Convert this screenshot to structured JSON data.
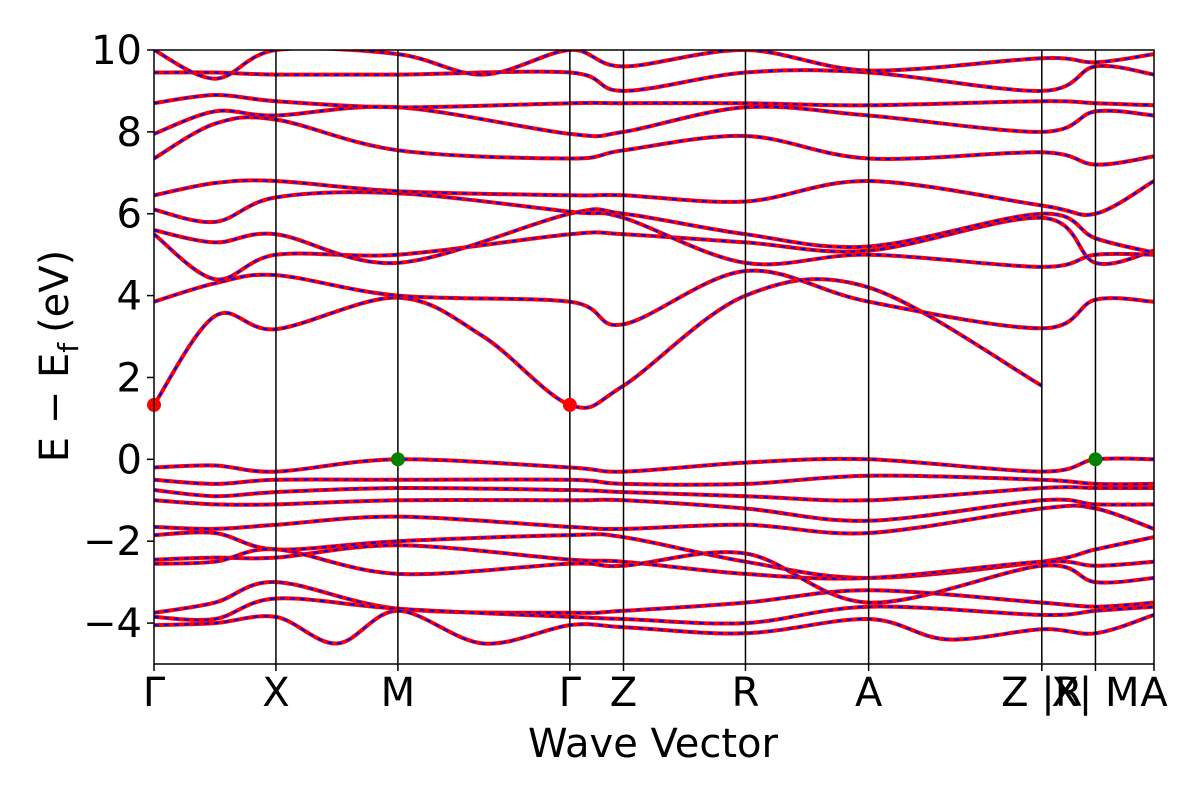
{
  "chart_data": {
    "type": "line",
    "title": "",
    "xlabel": "Wave Vector",
    "ylabel": "E − E",
    "ylabel_sub": "f",
    "ylabel_unit": "(eV)",
    "ylim": [
      -5,
      10
    ],
    "yticks": [
      -4,
      -2,
      0,
      2,
      4,
      6,
      8,
      10
    ],
    "ytick_labels": [
      "−4",
      "−2",
      "0",
      "2",
      "4",
      "6",
      "8",
      "10"
    ],
    "kpath_length": 8.2,
    "high_symmetry_points": [
      {
        "label": "Γ",
        "k": 0.0
      },
      {
        "label": "X",
        "k": 1.0
      },
      {
        "label": "M",
        "k": 2.0
      },
      {
        "label": "Γ",
        "k": 3.41
      },
      {
        "label": "Z",
        "k": 3.85
      },
      {
        "label": "R",
        "k": 4.85
      },
      {
        "label": "A",
        "k": 5.86
      },
      {
        "label": "Z |R",
        "k": 7.28
      },
      {
        "label": "X| M",
        "k": 7.72
      },
      {
        "label": "A",
        "k": 8.2
      }
    ],
    "colors": {
      "band_solid": "#ff0000",
      "band_dashed": "#0000ff",
      "vbm_marker": "#008000",
      "cbm_marker": "#ff0000"
    },
    "markers": [
      {
        "kind": "CBM",
        "k": 0.0,
        "energy": 1.33
      },
      {
        "kind": "CBM",
        "k": 3.41,
        "energy": 1.33
      },
      {
        "kind": "VBM",
        "k": 2.0,
        "energy": 0.0
      },
      {
        "kind": "VBM",
        "k": 7.72,
        "energy": 0.0
      }
    ],
    "series": [
      {
        "values": [
          [
            0,
            1.33
          ],
          [
            0.5,
            3.5
          ],
          [
            1,
            3.18
          ],
          [
            2,
            3.95
          ],
          [
            2.7,
            3.0
          ],
          [
            3.41,
            1.33
          ],
          [
            3.85,
            1.8
          ],
          [
            4.85,
            4.0
          ],
          [
            5.86,
            4.2
          ],
          [
            7.28,
            1.8
          ]
        ]
      },
      {
        "values": [
          [
            0,
            3.85
          ],
          [
            0.5,
            4.3
          ],
          [
            1,
            4.5
          ],
          [
            2,
            4.0
          ],
          [
            3.41,
            3.85
          ],
          [
            3.85,
            3.3
          ],
          [
            4.85,
            4.6
          ],
          [
            5.86,
            3.85
          ],
          [
            7.28,
            3.2
          ],
          [
            7.72,
            3.9
          ],
          [
            8.2,
            3.85
          ]
        ]
      },
      {
        "values": [
          [
            0,
            5.5
          ],
          [
            0.5,
            4.4
          ],
          [
            1,
            5.0
          ],
          [
            2,
            5.0
          ],
          [
            3.41,
            5.5
          ],
          [
            3.85,
            5.5
          ],
          [
            4.85,
            5.3
          ],
          [
            5.86,
            5.1
          ],
          [
            7.28,
            5.9
          ],
          [
            7.72,
            4.8
          ],
          [
            8.2,
            5.1
          ]
        ]
      },
      {
        "values": [
          [
            0,
            5.6
          ],
          [
            0.5,
            5.3
          ],
          [
            1,
            5.5
          ],
          [
            2,
            4.8
          ],
          [
            3.41,
            6.0
          ],
          [
            3.85,
            6.0
          ],
          [
            4.85,
            5.5
          ],
          [
            5.86,
            5.2
          ],
          [
            7.28,
            6.0
          ],
          [
            7.72,
            5.4
          ],
          [
            8.2,
            5.05
          ]
        ]
      },
      {
        "values": [
          [
            0,
            6.1
          ],
          [
            0.5,
            5.8
          ],
          [
            1,
            6.4
          ],
          [
            2,
            6.5
          ],
          [
            3.41,
            6.05
          ],
          [
            3.85,
            5.9
          ],
          [
            4.85,
            4.8
          ],
          [
            5.86,
            5.0
          ],
          [
            7.28,
            4.7
          ],
          [
            7.72,
            5.0
          ],
          [
            8.2,
            5.0
          ]
        ]
      },
      {
        "values": [
          [
            0,
            6.45
          ],
          [
            0.5,
            6.75
          ],
          [
            1,
            6.8
          ],
          [
            2,
            6.55
          ],
          [
            3.41,
            6.45
          ],
          [
            3.85,
            6.45
          ],
          [
            4.85,
            6.3
          ],
          [
            5.86,
            6.8
          ],
          [
            7.28,
            6.2
          ],
          [
            7.72,
            6.0
          ],
          [
            8.2,
            6.8
          ]
        ]
      },
      {
        "values": [
          [
            0,
            7.35
          ],
          [
            0.5,
            8.2
          ],
          [
            1,
            8.3
          ],
          [
            2,
            7.55
          ],
          [
            3.41,
            7.35
          ],
          [
            3.85,
            7.55
          ],
          [
            4.85,
            7.9
          ],
          [
            5.86,
            7.35
          ],
          [
            7.28,
            7.5
          ],
          [
            7.72,
            7.2
          ],
          [
            8.2,
            7.4
          ]
        ]
      },
      {
        "values": [
          [
            0,
            7.95
          ],
          [
            0.5,
            8.5
          ],
          [
            1,
            8.4
          ],
          [
            2,
            8.6
          ],
          [
            3.41,
            7.95
          ],
          [
            3.85,
            8.0
          ],
          [
            4.85,
            8.6
          ],
          [
            5.86,
            8.4
          ],
          [
            7.28,
            8.0
          ],
          [
            7.72,
            8.5
          ],
          [
            8.2,
            8.4
          ]
        ]
      },
      {
        "values": [
          [
            0,
            8.7
          ],
          [
            0.5,
            8.9
          ],
          [
            1,
            8.75
          ],
          [
            2,
            8.6
          ],
          [
            3.41,
            8.7
          ],
          [
            3.85,
            8.7
          ],
          [
            4.85,
            8.7
          ],
          [
            5.86,
            8.65
          ],
          [
            7.28,
            8.75
          ],
          [
            7.72,
            8.7
          ],
          [
            8.2,
            8.65
          ]
        ]
      },
      {
        "values": [
          [
            0,
            9.45
          ],
          [
            0.5,
            9.45
          ],
          [
            1,
            9.4
          ],
          [
            2,
            9.4
          ],
          [
            3.41,
            9.45
          ],
          [
            3.85,
            9.0
          ],
          [
            4.85,
            9.45
          ],
          [
            5.86,
            9.45
          ],
          [
            7.28,
            9.0
          ],
          [
            7.72,
            9.6
          ],
          [
            8.2,
            9.4
          ]
        ]
      },
      {
        "values": [
          [
            0,
            10.0
          ],
          [
            0.5,
            9.3
          ],
          [
            1,
            10.0
          ],
          [
            2,
            9.9
          ],
          [
            2.7,
            9.4
          ],
          [
            3.41,
            10.0
          ],
          [
            3.85,
            9.6
          ],
          [
            4.85,
            10.0
          ],
          [
            5.86,
            9.5
          ],
          [
            7.28,
            9.8
          ],
          [
            7.72,
            9.7
          ],
          [
            8.2,
            9.9
          ]
        ]
      },
      {
        "values": [
          [
            0,
            -0.2
          ],
          [
            0.5,
            -0.15
          ],
          [
            1,
            -0.3
          ],
          [
            2,
            0.0
          ],
          [
            3.41,
            -0.2
          ],
          [
            3.85,
            -0.3
          ],
          [
            4.85,
            -0.08
          ],
          [
            5.86,
            0.0
          ],
          [
            7.28,
            -0.3
          ],
          [
            7.72,
            0.0
          ],
          [
            8.2,
            0.0
          ]
        ]
      },
      {
        "values": [
          [
            0,
            -0.5
          ],
          [
            0.5,
            -0.6
          ],
          [
            1,
            -0.5
          ],
          [
            2,
            -0.5
          ],
          [
            3.41,
            -0.5
          ],
          [
            3.85,
            -0.6
          ],
          [
            4.85,
            -0.6
          ],
          [
            5.86,
            -0.4
          ],
          [
            7.28,
            -0.5
          ],
          [
            7.72,
            -0.6
          ],
          [
            8.2,
            -0.6
          ]
        ]
      },
      {
        "values": [
          [
            0,
            -0.75
          ],
          [
            0.5,
            -0.9
          ],
          [
            1,
            -0.8
          ],
          [
            2,
            -0.7
          ],
          [
            3.41,
            -0.75
          ],
          [
            3.85,
            -0.8
          ],
          [
            4.85,
            -0.9
          ],
          [
            5.86,
            -1.0
          ],
          [
            7.28,
            -0.7
          ],
          [
            7.72,
            -0.7
          ],
          [
            8.2,
            -0.7
          ]
        ]
      },
      {
        "values": [
          [
            0,
            -1.0
          ],
          [
            0.5,
            -1.1
          ],
          [
            1,
            -1.1
          ],
          [
            2,
            -1.0
          ],
          [
            3.41,
            -1.0
          ],
          [
            3.85,
            -1.0
          ],
          [
            4.85,
            -1.2
          ],
          [
            5.86,
            -1.5
          ],
          [
            7.28,
            -1.0
          ],
          [
            7.72,
            -1.1
          ],
          [
            8.2,
            -1.1
          ]
        ]
      },
      {
        "values": [
          [
            0,
            -1.65
          ],
          [
            0.5,
            -1.7
          ],
          [
            1,
            -1.6
          ],
          [
            2,
            -1.4
          ],
          [
            3.41,
            -1.65
          ],
          [
            3.85,
            -1.7
          ],
          [
            4.85,
            -1.6
          ],
          [
            5.86,
            -1.8
          ],
          [
            7.28,
            -1.2
          ],
          [
            7.72,
            -1.2
          ],
          [
            8.2,
            -1.7
          ]
        ]
      },
      {
        "values": [
          [
            0,
            -1.85
          ],
          [
            0.5,
            -1.8
          ],
          [
            1,
            -2.2
          ],
          [
            2,
            -2.0
          ],
          [
            3.41,
            -1.85
          ],
          [
            3.85,
            -1.9
          ],
          [
            4.85,
            -2.5
          ],
          [
            5.86,
            -2.9
          ],
          [
            7.28,
            -2.5
          ],
          [
            7.72,
            -2.2
          ],
          [
            8.2,
            -1.9
          ]
        ]
      },
      {
        "values": [
          [
            0,
            -2.45
          ],
          [
            0.5,
            -2.4
          ],
          [
            1,
            -2.4
          ],
          [
            2,
            -2.1
          ],
          [
            3.41,
            -2.45
          ],
          [
            3.85,
            -2.5
          ],
          [
            4.85,
            -2.8
          ],
          [
            5.86,
            -2.9
          ],
          [
            7.28,
            -2.5
          ],
          [
            7.72,
            -2.6
          ],
          [
            8.2,
            -2.5
          ]
        ]
      },
      {
        "values": [
          [
            0,
            -2.55
          ],
          [
            0.5,
            -2.5
          ],
          [
            1,
            -2.2
          ],
          [
            2,
            -2.8
          ],
          [
            3.41,
            -2.55
          ],
          [
            3.85,
            -2.6
          ],
          [
            4.85,
            -2.3
          ],
          [
            5.86,
            -3.5
          ],
          [
            7.28,
            -2.6
          ],
          [
            7.72,
            -3.0
          ],
          [
            8.2,
            -2.9
          ]
        ]
      },
      {
        "values": [
          [
            0,
            -3.75
          ],
          [
            0.5,
            -3.5
          ],
          [
            1,
            -3.0
          ],
          [
            2,
            -3.65
          ],
          [
            3.41,
            -3.75
          ],
          [
            3.85,
            -3.7
          ],
          [
            4.85,
            -3.5
          ],
          [
            5.86,
            -3.2
          ],
          [
            7.28,
            -3.5
          ],
          [
            7.72,
            -3.6
          ],
          [
            8.2,
            -3.5
          ]
        ]
      },
      {
        "values": [
          [
            0,
            -3.85
          ],
          [
            0.5,
            -3.9
          ],
          [
            1,
            -3.4
          ],
          [
            2,
            -3.65
          ],
          [
            3.41,
            -3.85
          ],
          [
            3.85,
            -3.9
          ],
          [
            4.85,
            -4.0
          ],
          [
            5.86,
            -3.6
          ],
          [
            7.28,
            -3.8
          ],
          [
            7.72,
            -3.7
          ],
          [
            8.2,
            -3.6
          ]
        ]
      },
      {
        "values": [
          [
            0,
            -4.05
          ],
          [
            0.5,
            -4.0
          ],
          [
            1,
            -3.85
          ],
          [
            1.5,
            -4.5
          ],
          [
            2,
            -3.7
          ],
          [
            2.7,
            -4.5
          ],
          [
            3.41,
            -4.05
          ],
          [
            3.85,
            -4.1
          ],
          [
            4.85,
            -4.25
          ],
          [
            5.86,
            -3.9
          ],
          [
            6.5,
            -4.4
          ],
          [
            7.28,
            -4.15
          ],
          [
            7.72,
            -4.25
          ],
          [
            8.2,
            -3.8
          ]
        ]
      }
    ]
  }
}
